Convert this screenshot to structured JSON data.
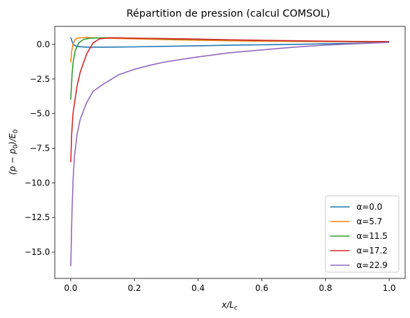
{
  "chart_data": {
    "type": "line",
    "title": "Répartition de pression (calcul COMSOL)",
    "xlabel": {
      "main": "x/L",
      "sub": "c"
    },
    "ylabel": {
      "pre": "(p − p",
      "sub1": "0",
      "mid": ")/E",
      "sub2": "0"
    },
    "xlim": [
      -0.05,
      1.05
    ],
    "ylim": [
      -16.9,
      1.3
    ],
    "xticks": [
      0.0,
      0.2,
      0.4,
      0.6,
      0.8,
      1.0
    ],
    "xtick_labels": [
      "0.0",
      "0.2",
      "0.4",
      "0.6",
      "0.8",
      "1.0"
    ],
    "yticks": [
      0.0,
      -2.5,
      -5.0,
      -7.5,
      -10.0,
      -12.5,
      -15.0
    ],
    "ytick_labels": [
      "0.0",
      "−2.5",
      "−5.0",
      "−7.5",
      "−10.0",
      "−12.5",
      "−15.0"
    ],
    "grid": false,
    "legend_position": "lower-right",
    "series": [
      {
        "name": "α=0.0",
        "color": "#1f77b4",
        "points": [
          [
            0.0,
            0.5
          ],
          [
            0.005,
            0.15
          ],
          [
            0.01,
            -0.05
          ],
          [
            0.02,
            -0.15
          ],
          [
            0.05,
            -0.2
          ],
          [
            0.1,
            -0.2
          ],
          [
            0.2,
            -0.18
          ],
          [
            0.3,
            -0.14
          ],
          [
            0.4,
            -0.1
          ],
          [
            0.5,
            -0.06
          ],
          [
            0.6,
            -0.03
          ],
          [
            0.7,
            0.0
          ],
          [
            0.8,
            0.04
          ],
          [
            0.9,
            0.08
          ],
          [
            1.0,
            0.15
          ]
        ]
      },
      {
        "name": "α=5.7",
        "color": "#ff7f0e",
        "points": [
          [
            0.0,
            -1.3
          ],
          [
            0.003,
            -0.5
          ],
          [
            0.007,
            0.0
          ],
          [
            0.012,
            0.3
          ],
          [
            0.02,
            0.45
          ],
          [
            0.04,
            0.5
          ],
          [
            0.07,
            0.48
          ],
          [
            0.1,
            0.45
          ],
          [
            0.2,
            0.4
          ],
          [
            0.3,
            0.34
          ],
          [
            0.4,
            0.3
          ],
          [
            0.5,
            0.26
          ],
          [
            0.6,
            0.23
          ],
          [
            0.7,
            0.21
          ],
          [
            0.8,
            0.2
          ],
          [
            0.9,
            0.19
          ],
          [
            1.0,
            0.2
          ]
        ]
      },
      {
        "name": "α=11.5",
        "color": "#2ca02c",
        "points": [
          [
            0.0,
            -4.0
          ],
          [
            0.004,
            -2.2
          ],
          [
            0.008,
            -1.2
          ],
          [
            0.015,
            -0.4
          ],
          [
            0.025,
            0.1
          ],
          [
            0.04,
            0.35
          ],
          [
            0.06,
            0.45
          ],
          [
            0.1,
            0.48
          ],
          [
            0.15,
            0.47
          ],
          [
            0.2,
            0.45
          ],
          [
            0.3,
            0.4
          ],
          [
            0.4,
            0.36
          ],
          [
            0.5,
            0.32
          ],
          [
            0.6,
            0.28
          ],
          [
            0.7,
            0.25
          ],
          [
            0.8,
            0.22
          ],
          [
            0.9,
            0.2
          ],
          [
            1.0,
            0.2
          ]
        ]
      },
      {
        "name": "α=17.2",
        "color": "#d62728",
        "points": [
          [
            0.0,
            -8.5
          ],
          [
            0.003,
            -6.5
          ],
          [
            0.007,
            -5.0
          ],
          [
            0.012,
            -4.2
          ],
          [
            0.02,
            -3.0
          ],
          [
            0.03,
            -2.0
          ],
          [
            0.05,
            -0.7
          ],
          [
            0.07,
            0.1
          ],
          [
            0.09,
            0.4
          ],
          [
            0.12,
            0.48
          ],
          [
            0.15,
            0.47
          ],
          [
            0.2,
            0.45
          ],
          [
            0.3,
            0.42
          ],
          [
            0.4,
            0.38
          ],
          [
            0.5,
            0.33
          ],
          [
            0.6,
            0.29
          ],
          [
            0.7,
            0.26
          ],
          [
            0.8,
            0.23
          ],
          [
            0.9,
            0.21
          ],
          [
            1.0,
            0.2
          ]
        ]
      },
      {
        "name": "α=22.9",
        "color": "#9467bd",
        "points": [
          [
            0.0,
            -16.0
          ],
          [
            0.002,
            -14.0
          ],
          [
            0.004,
            -12.0
          ],
          [
            0.008,
            -9.5
          ],
          [
            0.012,
            -8.0
          ],
          [
            0.02,
            -6.5
          ],
          [
            0.03,
            -5.4
          ],
          [
            0.05,
            -4.2
          ],
          [
            0.07,
            -3.4
          ],
          [
            0.1,
            -2.9
          ],
          [
            0.15,
            -2.2
          ],
          [
            0.2,
            -1.8
          ],
          [
            0.25,
            -1.5
          ],
          [
            0.3,
            -1.25
          ],
          [
            0.4,
            -0.9
          ],
          [
            0.5,
            -0.6
          ],
          [
            0.6,
            -0.4
          ],
          [
            0.7,
            -0.2
          ],
          [
            0.8,
            -0.05
          ],
          [
            0.9,
            0.05
          ],
          [
            1.0,
            0.15
          ]
        ]
      }
    ]
  }
}
